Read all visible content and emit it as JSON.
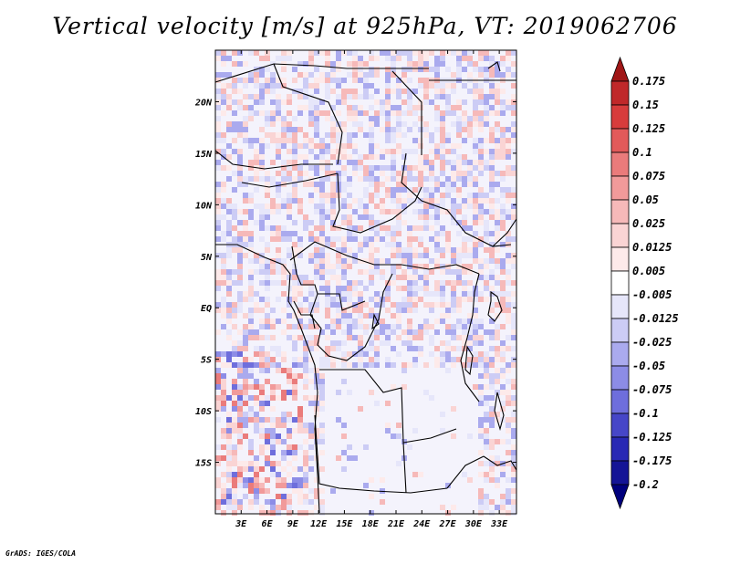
{
  "title": "Vertical velocity [m/s] at 925hPa, VT: 2019062706",
  "credit": "GrADS: IGES/COLA",
  "map": {
    "lon_ticks": [
      "3E",
      "6E",
      "9E",
      "12E",
      "15E",
      "18E",
      "21E",
      "24E",
      "27E",
      "30E",
      "33E"
    ],
    "lat_ticks": [
      "20N",
      "15N",
      "10N",
      "5N",
      "EQ",
      "5S",
      "10S",
      "15S"
    ],
    "lon_range": [
      0,
      35
    ],
    "lat_range": [
      -20,
      25
    ],
    "border_color": "#000000"
  },
  "colorbar": {
    "labels": [
      "0.175",
      "0.15",
      "0.125",
      "0.1",
      "0.075",
      "0.05",
      "0.025",
      "0.0125",
      "0.005",
      "-0.005",
      "-0.0125",
      "-0.025",
      "-0.05",
      "-0.075",
      "-0.1",
      "-0.125",
      "-0.175",
      "-0.2"
    ],
    "colors": [
      "#a01616",
      "#c0282a",
      "#d73c3c",
      "#e25a5a",
      "#ea7b7b",
      "#f19a9a",
      "#f6b9b9",
      "#fad4d4",
      "#fdeaea",
      "#ffffff",
      "#e6e6fa",
      "#ccccf5",
      "#aaaaee",
      "#8c8ce6",
      "#6e6edc",
      "#4646c8",
      "#2828b4",
      "#141496",
      "#00007d"
    ]
  }
}
